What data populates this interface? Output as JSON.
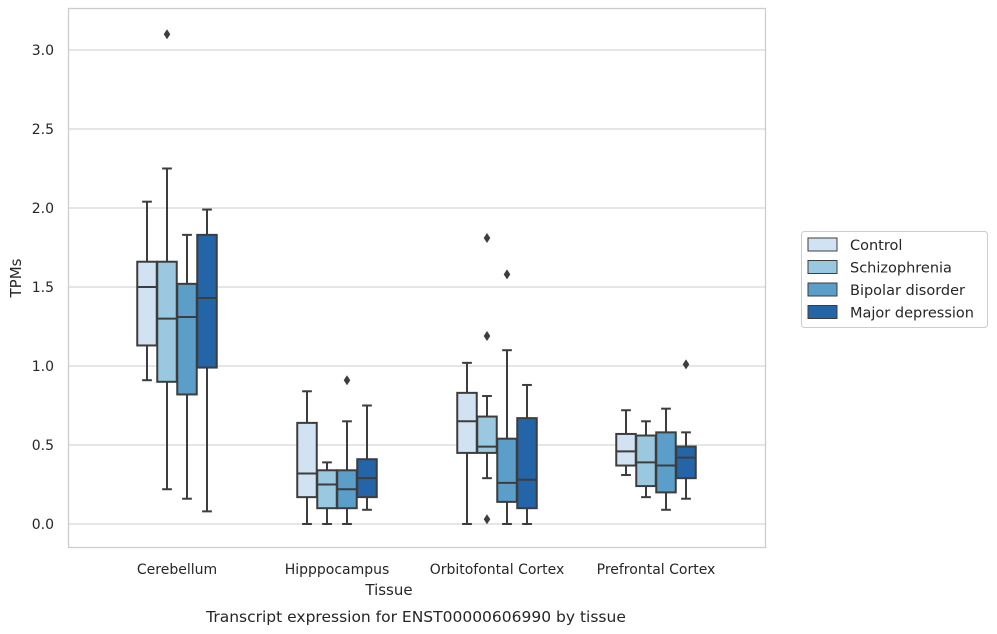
{
  "chart_data": {
    "type": "box",
    "title": "",
    "caption": "Transcript expression for ENST00000606990 by tissue",
    "xlabel": "Tissue",
    "ylabel": "TPMs",
    "ylim": [
      -0.15,
      3.25
    ],
    "yticks": [
      0.0,
      0.5,
      1.0,
      1.5,
      2.0,
      2.5,
      3.0
    ],
    "ytick_labels": [
      "0.0",
      "0.5",
      "1.0",
      "1.5",
      "2.0",
      "2.5",
      "3.0"
    ],
    "grid": "horizontal",
    "legend_position": "right",
    "categories": [
      "Cerebellum",
      "Hipppocampus",
      "Orbitofontal Cortex",
      "Prefrontal Cortex"
    ],
    "series": [
      {
        "name": "Control",
        "color": "#d1e2f2",
        "boxes": [
          {
            "min": 0.91,
            "q1": 1.13,
            "median": 1.5,
            "q3": 1.66,
            "max": 2.04,
            "outliers": []
          },
          {
            "min": 0.0,
            "q1": 0.17,
            "median": 0.32,
            "q3": 0.64,
            "max": 0.84,
            "outliers": []
          },
          {
            "min": 0.0,
            "q1": 0.45,
            "median": 0.65,
            "q3": 0.83,
            "max": 1.02,
            "outliers": []
          },
          {
            "min": 0.31,
            "q1": 0.37,
            "median": 0.46,
            "q3": 0.57,
            "max": 0.72,
            "outliers": []
          }
        ]
      },
      {
        "name": "Schizophrenia",
        "color": "#9ac8e0",
        "boxes": [
          {
            "min": 0.22,
            "q1": 0.9,
            "median": 1.3,
            "q3": 1.66,
            "max": 2.25,
            "outliers": [
              3.1
            ]
          },
          {
            "min": 0.0,
            "q1": 0.1,
            "median": 0.25,
            "q3": 0.34,
            "max": 0.39,
            "outliers": []
          },
          {
            "min": 0.29,
            "q1": 0.45,
            "median": 0.49,
            "q3": 0.68,
            "max": 0.81,
            "outliers": [
              1.81,
              1.19,
              0.03
            ]
          },
          {
            "min": 0.17,
            "q1": 0.24,
            "median": 0.39,
            "q3": 0.56,
            "max": 0.65,
            "outliers": []
          }
        ]
      },
      {
        "name": "Bipolar disorder",
        "color": "#5a9ec9",
        "boxes": [
          {
            "min": 0.16,
            "q1": 0.82,
            "median": 1.31,
            "q3": 1.52,
            "max": 1.83,
            "outliers": []
          },
          {
            "min": 0.0,
            "q1": 0.1,
            "median": 0.22,
            "q3": 0.34,
            "max": 0.65,
            "outliers": [
              0.91
            ]
          },
          {
            "min": 0.0,
            "q1": 0.14,
            "median": 0.26,
            "q3": 0.54,
            "max": 1.1,
            "outliers": [
              1.58
            ]
          },
          {
            "min": 0.09,
            "q1": 0.2,
            "median": 0.37,
            "q3": 0.58,
            "max": 0.73,
            "outliers": []
          }
        ]
      },
      {
        "name": "Major depression",
        "color": "#2465a8",
        "boxes": [
          {
            "min": 0.08,
            "q1": 0.99,
            "median": 1.43,
            "q3": 1.83,
            "max": 1.99,
            "outliers": []
          },
          {
            "min": 0.09,
            "q1": 0.17,
            "median": 0.29,
            "q3": 0.41,
            "max": 0.75,
            "outliers": []
          },
          {
            "min": 0.0,
            "q1": 0.1,
            "median": 0.28,
            "q3": 0.67,
            "max": 0.88,
            "outliers": []
          },
          {
            "min": 0.16,
            "q1": 0.29,
            "median": 0.42,
            "q3": 0.49,
            "max": 0.58,
            "outliers": [
              1.01
            ]
          }
        ]
      }
    ]
  }
}
